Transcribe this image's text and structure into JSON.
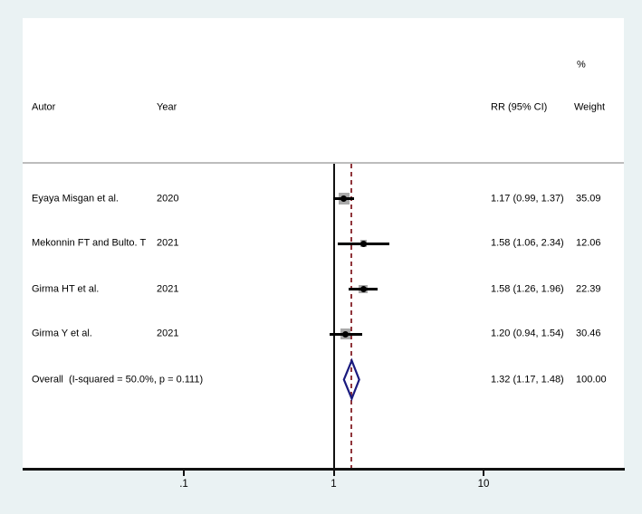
{
  "colors": {
    "page_background": "#eaf2f3",
    "plot_background": "#ffffff",
    "axis": "#111111",
    "separator": "#bdbdbd",
    "null_line": "#111111",
    "overall_dashed_line": "#90353b",
    "diamond_outline": "#1a1a7e",
    "weight_box": "#a9a9a9",
    "marker": "#000000",
    "text": "#000000"
  },
  "header": {
    "autor": "Autor",
    "year": "Year",
    "rr": "RR (95% CI)",
    "percent": "%",
    "weight": "Weight"
  },
  "chart_data": {
    "type": "forest",
    "x_axis": {
      "scale": "log",
      "ticks": [
        0.1,
        1,
        10
      ],
      "tick_labels": [
        ".1",
        "1",
        "10"
      ],
      "null_value": 1
    },
    "overall_line_value": 1.32,
    "studies": [
      {
        "autor": "Eyaya Misgan et al.",
        "year": "2020",
        "rr": 1.17,
        "ci_low": 0.99,
        "ci_high": 1.37,
        "rr_label": "1.17 (0.99, 1.37)",
        "weight": 35.09,
        "weight_label": "35.09"
      },
      {
        "autor": "Mekonnin FT and Bulto. T",
        "year": "2021",
        "rr": 1.58,
        "ci_low": 1.06,
        "ci_high": 2.34,
        "rr_label": "1.58 (1.06, 2.34)",
        "weight": 12.06,
        "weight_label": "12.06"
      },
      {
        "autor": "Girma HT et al.",
        "year": "2021",
        "rr": 1.58,
        "ci_low": 1.26,
        "ci_high": 1.96,
        "rr_label": "1.58 (1.26, 1.96)",
        "weight": 22.39,
        "weight_label": "22.39"
      },
      {
        "autor": "Girma Y et al.",
        "year": "2021",
        "rr": 1.2,
        "ci_low": 0.94,
        "ci_high": 1.54,
        "rr_label": "1.20 (0.94, 1.54)",
        "weight": 30.46,
        "weight_label": "30.46"
      }
    ],
    "overall": {
      "label": "Overall  (I-squared = 50.0%, p = 0.111)",
      "rr": 1.32,
      "ci_low": 1.17,
      "ci_high": 1.48,
      "rr_label": "1.32 (1.17, 1.48)",
      "weight_label": "100.00"
    }
  }
}
